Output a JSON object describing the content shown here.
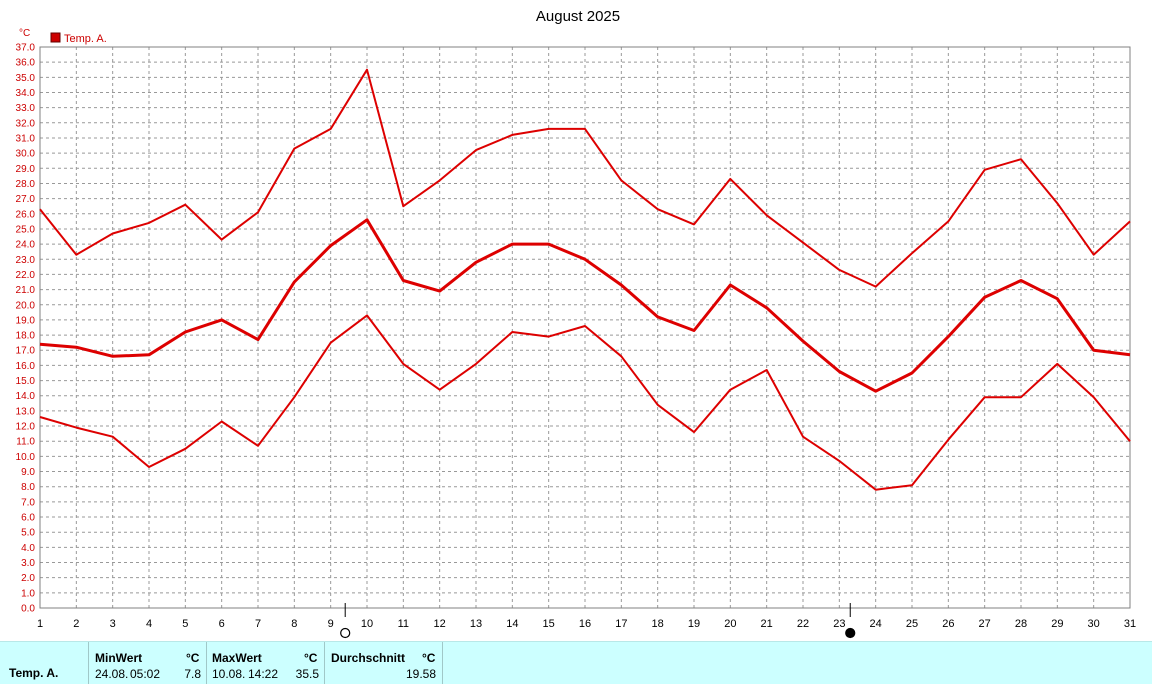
{
  "chart_data": {
    "type": "line",
    "title": "August 2025",
    "yunit": "°C",
    "legend": [
      {
        "name": "Temp. A.",
        "color": "#cc0000"
      }
    ],
    "legend_position": "top-left",
    "grid": true,
    "ylim": [
      0,
      37
    ],
    "ytick_step": 1,
    "x": [
      1,
      2,
      3,
      4,
      5,
      6,
      7,
      8,
      9,
      10,
      11,
      12,
      13,
      14,
      15,
      16,
      17,
      18,
      19,
      20,
      21,
      22,
      23,
      24,
      25,
      26,
      27,
      28,
      29,
      30,
      31
    ],
    "series": [
      {
        "role": "max",
        "line_width": 2,
        "values": [
          26.3,
          23.3,
          24.7,
          25.4,
          26.6,
          24.3,
          26.1,
          30.3,
          31.6,
          35.5,
          26.5,
          28.2,
          30.2,
          31.2,
          31.6,
          31.6,
          28.2,
          26.3,
          25.3,
          28.3,
          25.9,
          24.1,
          22.3,
          21.2,
          23.4,
          25.5,
          28.9,
          29.6,
          26.7,
          23.3,
          25.5
        ]
      },
      {
        "role": "avg",
        "line_width": 3,
        "values": [
          17.4,
          17.2,
          16.6,
          16.7,
          18.2,
          19.0,
          17.7,
          21.5,
          23.9,
          25.6,
          21.6,
          20.9,
          22.8,
          24.0,
          24.0,
          23.0,
          21.3,
          19.2,
          18.3,
          21.3,
          19.8,
          17.6,
          15.6,
          14.3,
          15.5,
          17.9,
          20.5,
          21.6,
          20.4,
          17.0,
          16.7
        ]
      },
      {
        "role": "min",
        "line_width": 2,
        "values": [
          12.6,
          11.9,
          11.3,
          9.3,
          10.5,
          12.3,
          10.7,
          13.9,
          17.5,
          19.3,
          16.1,
          14.4,
          16.1,
          18.2,
          17.9,
          18.6,
          16.6,
          13.4,
          11.6,
          14.4,
          15.7,
          11.3,
          9.7,
          7.8,
          8.1,
          11.1,
          13.9,
          13.9,
          16.1,
          13.9,
          11.0
        ]
      }
    ],
    "moon_markers": [
      {
        "day": 9.4,
        "phase": "full-moon"
      },
      {
        "day": 23.3,
        "phase": "new-moon"
      }
    ],
    "line_color": "#dd0000"
  },
  "stats": {
    "row_label": "Temp. A.",
    "min": {
      "header": "MinWert",
      "unit": "°C",
      "date": "24.08.",
      "time": "05:02",
      "value": "7.8"
    },
    "max": {
      "header": "MaxWert",
      "unit": "°C",
      "date": "10.08.",
      "time": "14:22",
      "value": "35.5"
    },
    "avg": {
      "header": "Durchschnitt",
      "unit": "°C",
      "value": "19.58"
    }
  }
}
